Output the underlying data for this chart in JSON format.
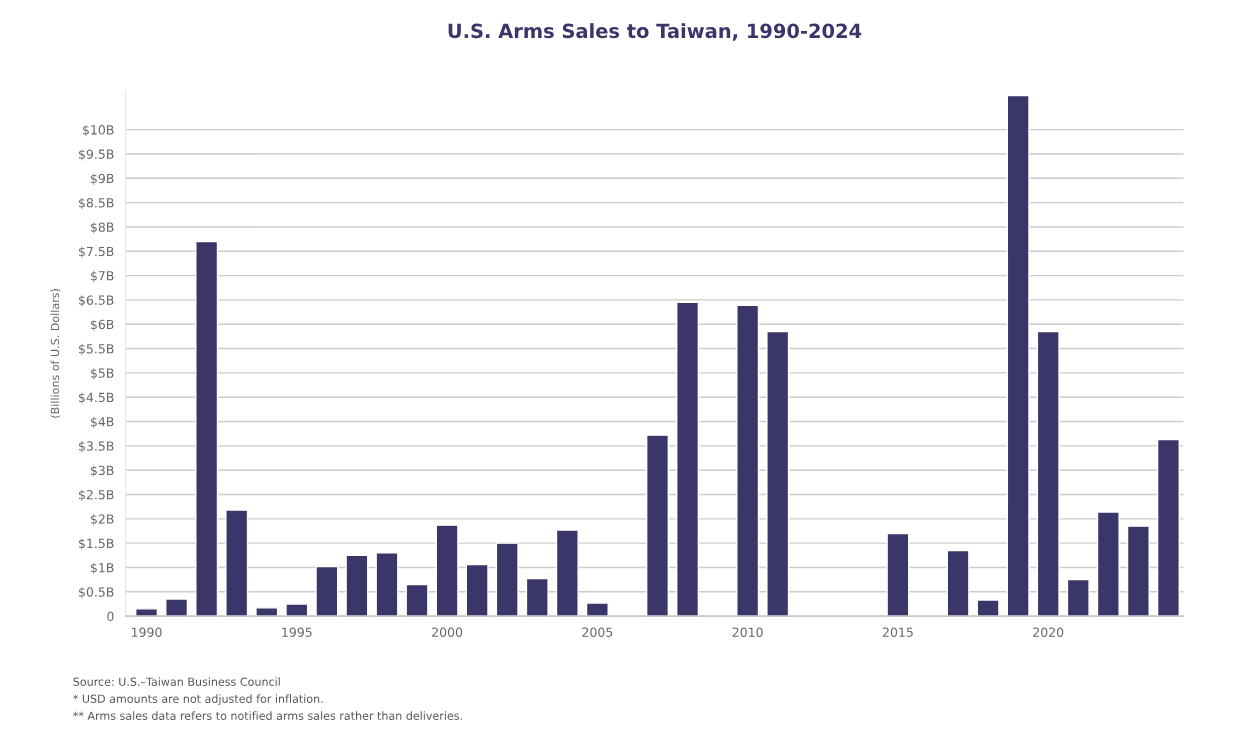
{
  "chart_data": {
    "type": "bar",
    "title": "U.S. Arms Sales to Taiwan, 1990-2024",
    "ylabel": "(Billions of U.S. Dollars)",
    "categories": [
      "1990",
      null,
      null,
      null,
      null,
      "1995",
      null,
      null,
      null,
      null,
      "2000",
      null,
      null,
      null,
      null,
      "2005",
      null,
      null,
      null,
      null,
      "2010",
      null,
      null,
      null,
      null,
      "2015",
      null,
      null,
      null,
      null,
      "2020",
      null,
      null,
      null,
      null
    ],
    "values": [
      0.15,
      0.35,
      7.7,
      2.18,
      0.17,
      0.25,
      1.02,
      1.25,
      1.3,
      0.65,
      1.87,
      1.06,
      1.5,
      0.77,
      1.77,
      0.27,
      null,
      3.72,
      6.45,
      null,
      6.39,
      5.85,
      null,
      null,
      null,
      1.7,
      null,
      1.35,
      0.33,
      10.7,
      5.85,
      0.75,
      2.14,
      1.85,
      3.63
    ],
    "color": "#3a3669",
    "ylim": [
      0,
      10.8
    ],
    "yticks": [
      {
        "value": 0,
        "label": "0"
      },
      {
        "value": 0.5,
        "label": "$0.5B"
      },
      {
        "value": 1,
        "label": "$1B"
      },
      {
        "value": 1.5,
        "label": "$1.5B"
      },
      {
        "value": 2,
        "label": "$2B"
      },
      {
        "value": 2.5,
        "label": "$2.5B"
      },
      {
        "value": 3,
        "label": "$3B"
      },
      {
        "value": 3.5,
        "label": "$3.5B"
      },
      {
        "value": 4,
        "label": "$4B"
      },
      {
        "value": 4.5,
        "label": "$4.5B"
      },
      {
        "value": 5,
        "label": "$5B"
      },
      {
        "value": 5.5,
        "label": "$5.5B"
      },
      {
        "value": 6,
        "label": "$6B"
      },
      {
        "value": 6.5,
        "label": "$6.5B"
      },
      {
        "value": 7,
        "label": "$7B"
      },
      {
        "value": 7.5,
        "label": "$7.5B"
      },
      {
        "value": 8,
        "label": "$8B"
      },
      {
        "value": 8.5,
        "label": "$8.5B"
      },
      {
        "value": 9,
        "label": "$9B"
      },
      {
        "value": 9.5,
        "label": "$9.5B"
      },
      {
        "value": 10,
        "label": "$10B"
      }
    ],
    "grid": "y",
    "annotations": [
      "Source: U.S.–Taiwan Business Council",
      "* USD amounts are not adjusted for inflation.",
      "** Arms sales data refers to notified arms sales rather than deliveries."
    ]
  }
}
